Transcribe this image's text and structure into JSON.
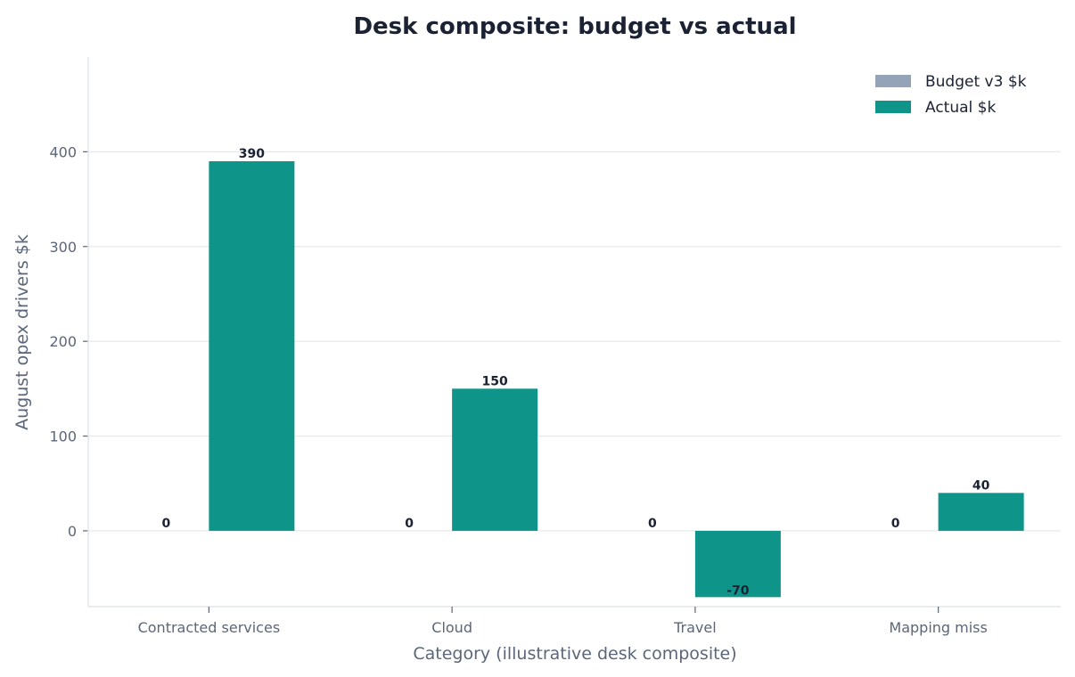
{
  "chart_data": {
    "type": "bar",
    "title": "Desk composite: budget vs actual",
    "xlabel": "Category (illustrative desk composite)",
    "ylabel": "August opex drivers $k",
    "categories": [
      "Contracted services",
      "Cloud",
      "Travel",
      "Mapping miss"
    ],
    "series": [
      {
        "name": "Budget v3 $k",
        "values": [
          0,
          0,
          0,
          0
        ],
        "color": "#94a3b8"
      },
      {
        "name": "Actual $k",
        "values": [
          390,
          150,
          -70,
          40
        ],
        "color": "#0e9488"
      }
    ],
    "ylim": [
      -80,
      500
    ],
    "yticks": [
      0,
      100,
      200,
      300,
      400
    ],
    "grid": "y",
    "legend": "top-right"
  }
}
